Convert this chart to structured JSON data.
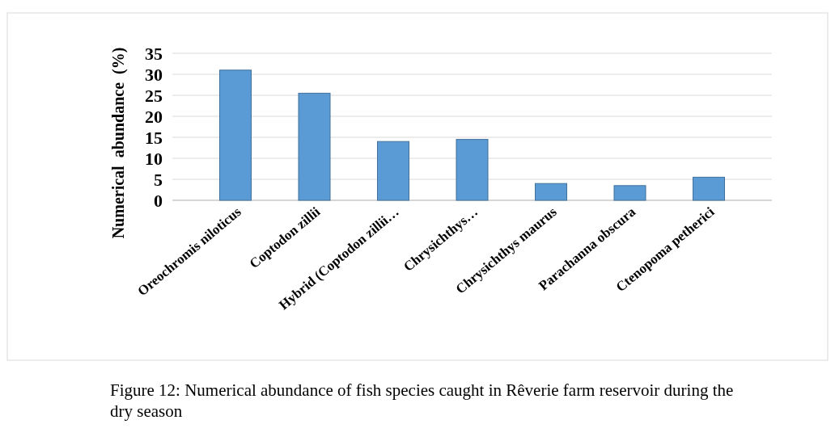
{
  "chart_data": {
    "type": "bar",
    "ylabel": "Numerical  abundance  (%)",
    "categories": [
      "Oreochromis niloticus",
      "Coptodon zillii",
      "Hybrid (Coptodon zillii…",
      "Chrysichthys…",
      "Chrysichthys maurus",
      "Parachanna obscura",
      "Ctenopoma petherici"
    ],
    "values": [
      31,
      25.5,
      14,
      14.5,
      4,
      3.5,
      5.5
    ],
    "color": "#5b9bd5",
    "ylim": [
      0,
      35
    ],
    "yticks": [
      0,
      5,
      10,
      15,
      20,
      25,
      30,
      35
    ],
    "grid": true,
    "annotations": [
      "Figure 12: Numerical abundance of fish species caught in Rêverie farm reservoir during the dry season"
    ]
  }
}
